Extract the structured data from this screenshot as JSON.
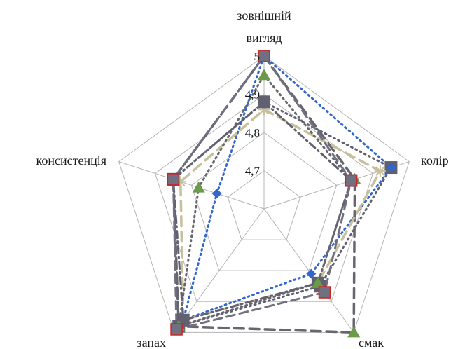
{
  "chart_data": {
    "type": "radar",
    "title": "",
    "axes": [
      "зовнішній вигляд",
      "колір",
      "смак",
      "запах",
      "консистенція"
    ],
    "range": [
      4.6,
      5.0
    ],
    "ticks": [
      {
        "value": 4.7,
        "label": "4,7"
      },
      {
        "value": 4.8,
        "label": "4,8"
      },
      {
        "value": 4.9,
        "label": "4,9"
      },
      {
        "value": 5.0,
        "label": "5"
      }
    ],
    "grid": true,
    "legend": "none",
    "series": [
      {
        "values": [
          4.88,
          4.95,
          4.85,
          4.98,
          4.85
        ],
        "color": "#606070",
        "dash": "2,5",
        "width": 3,
        "marker": "square"
      },
      {
        "values": [
          5.0,
          4.95,
          4.81,
          4.96,
          4.73
        ],
        "color": "#3366cc",
        "dash": "2,5",
        "width": 3,
        "marker": "diamond"
      },
      {
        "values": [
          5.0,
          4.85,
          5.0,
          4.98,
          4.85
        ],
        "color": "#66666e",
        "dash": "14,8",
        "width": 3.5,
        "marker": "triangle"
      },
      {
        "values": [
          4.86,
          4.92,
          4.84,
          4.96,
          4.83
        ],
        "color": "#c8c09a",
        "dash": "14,8",
        "width": 3.5,
        "marker": "star"
      },
      {
        "values": [
          4.88,
          4.84,
          4.84,
          4.96,
          4.85
        ],
        "color": "#606070",
        "dash": "10,5,2,5",
        "width": 3,
        "marker": "square"
      },
      {
        "values": [
          4.95,
          4.84,
          4.84,
          4.98,
          4.78
        ],
        "color": "#66666e",
        "dash": "2,5",
        "width": 3,
        "marker": "triangle"
      },
      {
        "values": [
          5.0,
          4.84,
          4.87,
          4.99,
          4.85
        ],
        "color": "#707080",
        "dash": "12,7",
        "width": 3,
        "marker": "square-outline"
      }
    ],
    "colors": {
      "grid": "#b5b5b5",
      "marker_outline": "#cc2222"
    }
  }
}
